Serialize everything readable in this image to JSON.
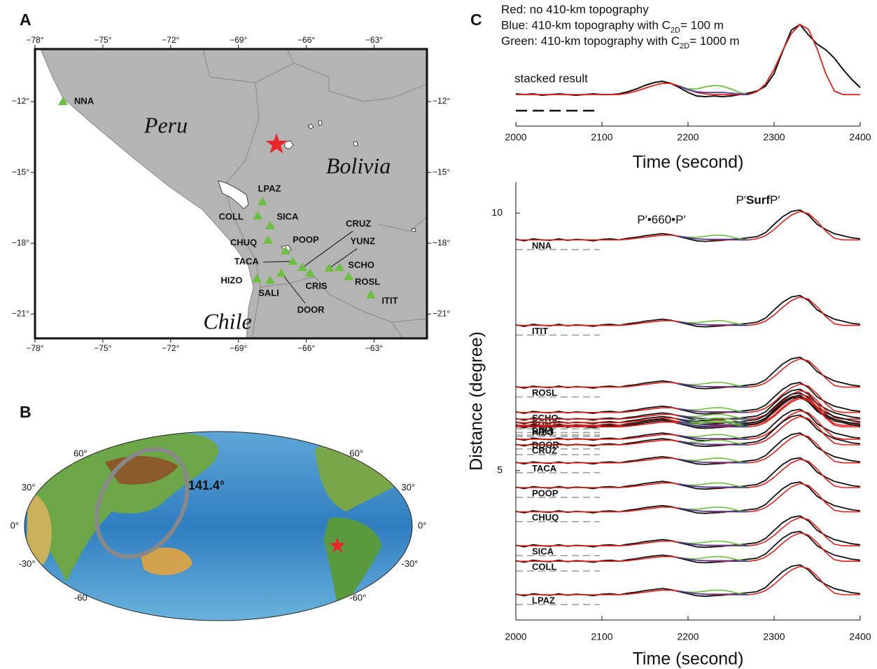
{
  "panel_a": {
    "label": "A",
    "lon_ticks": [
      {
        "value": -78,
        "label": "−78°"
      },
      {
        "value": -75,
        "label": "−75°"
      },
      {
        "value": -72,
        "label": "−72°"
      },
      {
        "value": -69,
        "label": "−69°"
      },
      {
        "value": -66,
        "label": "−66°"
      },
      {
        "value": -63,
        "label": "−63°"
      }
    ],
    "lat_ticks": [
      {
        "value": -12,
        "label": "−12°"
      },
      {
        "value": -15,
        "label": "−15°"
      },
      {
        "value": -18,
        "label": "−18°"
      },
      {
        "value": -21,
        "label": "−21°"
      }
    ],
    "regions": [
      "Peru",
      "Bolivia",
      "Chile"
    ],
    "event": {
      "lon": -67.32,
      "lat": -13.81
    },
    "stations": [
      {
        "name": "NNA",
        "lon": -76.76,
        "lat": -12.0
      },
      {
        "name": "LPAZ",
        "lon": -67.94,
        "lat": -16.24
      },
      {
        "name": "COLL",
        "lon": -68.15,
        "lat": -16.84
      },
      {
        "name": "SICA",
        "lon": -67.6,
        "lat": -17.26
      },
      {
        "name": "CHUQ",
        "lon": -67.69,
        "lat": -17.88
      },
      {
        "name": "POOP",
        "lon": -66.92,
        "lat": -18.32
      },
      {
        "name": "TACA",
        "lon": -66.6,
        "lat": -18.77
      },
      {
        "name": "CRUZ",
        "lon": -66.17,
        "lat": -19.03
      },
      {
        "name": "YUNZ",
        "lon": -64.99,
        "lat": -19.06
      },
      {
        "name": "SCHO",
        "lon": -64.53,
        "lat": -19.03
      },
      {
        "name": "CRIS",
        "lon": -65.83,
        "lat": -19.27
      },
      {
        "name": "ROSL",
        "lon": -64.13,
        "lat": -19.42
      },
      {
        "name": "ITIT",
        "lon": -63.14,
        "lat": -20.19
      },
      {
        "name": "HIZO",
        "lon": -68.19,
        "lat": -19.51
      },
      {
        "name": "SALI",
        "lon": -67.6,
        "lat": -19.57
      },
      {
        "name": "DOOR",
        "lon": -67.1,
        "lat": -19.27
      }
    ]
  },
  "panel_b": {
    "label": "B",
    "lat_labels_left": [
      {
        "value": 60,
        "label": "60°"
      },
      {
        "value": 30,
        "label": "30°"
      },
      {
        "value": 0,
        "label": "0°"
      },
      {
        "value": -30,
        "label": "-30°"
      },
      {
        "value": -60,
        "label": "-60"
      }
    ],
    "lat_labels_right": [
      {
        "value": 60,
        "label": "60°"
      },
      {
        "value": 30,
        "label": "30°"
      },
      {
        "value": 0,
        "label": "0°"
      },
      {
        "value": -30,
        "label": "-30°"
      },
      {
        "value": -60,
        "label": "-60°"
      }
    ],
    "distance_label": "141.4°"
  },
  "panel_c": {
    "label": "C"
  },
  "chart_data": [
    {
      "type": "line",
      "notes": [
        {
          "text": "Red: no 410-km topography"
        },
        {
          "text": "Blue: 410-km topography with C",
          "sub": "2D",
          "rest": "= 100 m"
        },
        {
          "text": "Green: 410-km topography with C",
          "sub": "2D",
          "rest": "= 1000 m"
        }
      ],
      "x": [
        2000,
        2010,
        2020,
        2030,
        2040,
        2050,
        2060,
        2070,
        2080,
        2090,
        2100,
        2110,
        2120,
        2130,
        2140,
        2150,
        2160,
        2170,
        2180,
        2190,
        2200,
        2210,
        2220,
        2230,
        2240,
        2250,
        2260,
        2270,
        2280,
        2290,
        2300,
        2310,
        2320,
        2330,
        2340,
        2350,
        2360,
        2370,
        2380,
        2390,
        2400
      ],
      "series": [
        {
          "name": "stacked result",
          "color": "#111111",
          "values": [
            0.01,
            0,
            0.01,
            -0.01,
            0,
            0.01,
            0,
            -0.01,
            0,
            0.01,
            0,
            0,
            0.01,
            0.04,
            0.08,
            0.13,
            0.17,
            0.19,
            0.16,
            0.1,
            0.03,
            -0.02,
            -0.03,
            -0.02,
            -0.03,
            -0.02,
            0,
            0.02,
            0.05,
            0.12,
            0.3,
            0.62,
            0.92,
            1.0,
            0.85,
            0.72,
            0.64,
            0.52,
            0.36,
            0.22,
            0.1
          ]
        },
        {
          "color": "#e0201b",
          "values": [
            0,
            0,
            0,
            0,
            0,
            0,
            0,
            0,
            0,
            0,
            0,
            0,
            0,
            0.02,
            0.05,
            0.09,
            0.13,
            0.16,
            0.16,
            0.12,
            0.07,
            0.03,
            0.01,
            0,
            0,
            0,
            0,
            0,
            0.04,
            0.15,
            0.36,
            0.63,
            0.87,
            1.0,
            0.93,
            0.65,
            0.3,
            0.05,
            0,
            0,
            0
          ]
        },
        {
          "color": "#6cbf3f",
          "values": [
            null,
            null,
            null,
            null,
            null,
            null,
            null,
            null,
            null,
            null,
            null,
            null,
            null,
            null,
            null,
            null,
            null,
            null,
            null,
            0.12,
            0.08,
            0.08,
            0.11,
            0.13,
            0.12,
            0.08,
            0.03,
            0,
            null,
            null,
            null,
            null,
            null,
            null,
            null,
            null,
            null,
            null,
            null,
            null,
            null
          ]
        },
        {
          "color": "#4a3a9a",
          "values": [
            null,
            null,
            null,
            null,
            null,
            null,
            null,
            null,
            null,
            null,
            null,
            null,
            null,
            null,
            null,
            null,
            null,
            null,
            null,
            0.12,
            0.07,
            0.04,
            0.03,
            0.03,
            0.03,
            0.02,
            0.01,
            0,
            null,
            null,
            null,
            null,
            null,
            null,
            null,
            null,
            null,
            null,
            null,
            null,
            null
          ]
        }
      ],
      "xlim": [
        2000,
        2400
      ],
      "xticks": [
        2000,
        2100,
        2200,
        2300,
        2400
      ],
      "xlabel": "Time (second)"
    },
    {
      "type": "wiggle",
      "annotations": [
        {
          "text": "P′•660•P′"
        },
        {
          "text": "P′",
          "bold": "Surf",
          "rest": "P′"
        }
      ],
      "x": [
        2000,
        2010,
        2020,
        2030,
        2040,
        2050,
        2060,
        2070,
        2080,
        2090,
        2100,
        2110,
        2120,
        2130,
        2140,
        2150,
        2160,
        2170,
        2180,
        2190,
        2200,
        2210,
        2220,
        2230,
        2240,
        2250,
        2260,
        2270,
        2280,
        2290,
        2300,
        2310,
        2320,
        2330,
        2340,
        2350,
        2360,
        2370,
        2380,
        2390,
        2400
      ],
      "waveform": {
        "black": [
          0.01,
          -0.02,
          0.02,
          0,
          -0.01,
          0.02,
          -0.01,
          0.01,
          0,
          -0.02,
          0.01,
          0.02,
          0,
          0.03,
          0.05,
          0.08,
          0.1,
          0.12,
          0.1,
          0.06,
          0.02,
          -0.02,
          -0.03,
          -0.02,
          -0.01,
          0.01,
          0.02,
          0.04,
          0.06,
          0.14,
          0.3,
          0.45,
          0.55,
          0.58,
          0.48,
          0.3,
          0.2,
          0.12,
          0.08,
          0.04,
          0.02
        ],
        "red": [
          0,
          0,
          0,
          0,
          0,
          0,
          0,
          0,
          0,
          0,
          0,
          0,
          0,
          0.01,
          0.03,
          0.05,
          0.07,
          0.09,
          0.09,
          0.07,
          0.04,
          0.02,
          0.01,
          0,
          0,
          0,
          0,
          0,
          0.02,
          0.08,
          0.2,
          0.35,
          0.48,
          0.55,
          0.51,
          0.36,
          0.17,
          0.03,
          0,
          0,
          0
        ],
        "green": [
          null,
          null,
          null,
          null,
          null,
          null,
          null,
          null,
          null,
          null,
          null,
          null,
          null,
          null,
          null,
          null,
          null,
          null,
          null,
          0.07,
          0.05,
          0.05,
          0.07,
          0.09,
          0.09,
          0.06,
          0.02,
          0,
          null,
          null,
          null,
          null,
          null,
          null,
          null,
          null,
          null,
          null,
          null,
          null,
          null
        ],
        "blue": [
          null,
          null,
          null,
          null,
          null,
          null,
          null,
          null,
          null,
          null,
          null,
          null,
          null,
          null,
          null,
          null,
          null,
          null,
          null,
          0.07,
          0.04,
          0.02,
          0.01,
          0.01,
          0.01,
          0.01,
          0,
          0,
          null,
          null,
          null,
          null,
          null,
          null,
          null,
          null,
          null,
          null,
          null,
          null,
          null
        ]
      },
      "colors": {
        "black": "#111111",
        "red": "#e0201b",
        "green": "#6cbf3f",
        "blue": "#4a3a9a"
      },
      "stations": [
        {
          "name": "NNA",
          "distance": 9.48
        },
        {
          "name": "ITIT",
          "distance": 7.82
        },
        {
          "name": "ROSL",
          "distance": 6.62
        },
        {
          "name": "SCHO",
          "distance": 6.13
        },
        {
          "name": "YUNZ",
          "distance": 6.0
        },
        {
          "name": "CRIS",
          "distance": 5.93
        },
        {
          "name": "SALI",
          "distance": 5.88
        },
        {
          "name": "HIZO",
          "distance": 5.85
        },
        {
          "name": "DOOR",
          "distance": 5.61
        },
        {
          "name": "CRUZ",
          "distance": 5.5
        },
        {
          "name": "TACA",
          "distance": 5.15
        },
        {
          "name": "POOP",
          "distance": 4.67
        },
        {
          "name": "CHUQ",
          "distance": 4.2
        },
        {
          "name": "SICA",
          "distance": 3.54
        },
        {
          "name": "COLL",
          "distance": 3.24
        },
        {
          "name": "LPAZ",
          "distance": 2.59
        }
      ],
      "xlim": [
        2000,
        2400
      ],
      "xticks": [
        2000,
        2100,
        2200,
        2300,
        2400
      ],
      "ylim": [
        2.1,
        10.6
      ],
      "yticks": [
        5,
        10
      ],
      "xlabel": "Time (second)",
      "ylabel": "Distance (degree)"
    }
  ]
}
